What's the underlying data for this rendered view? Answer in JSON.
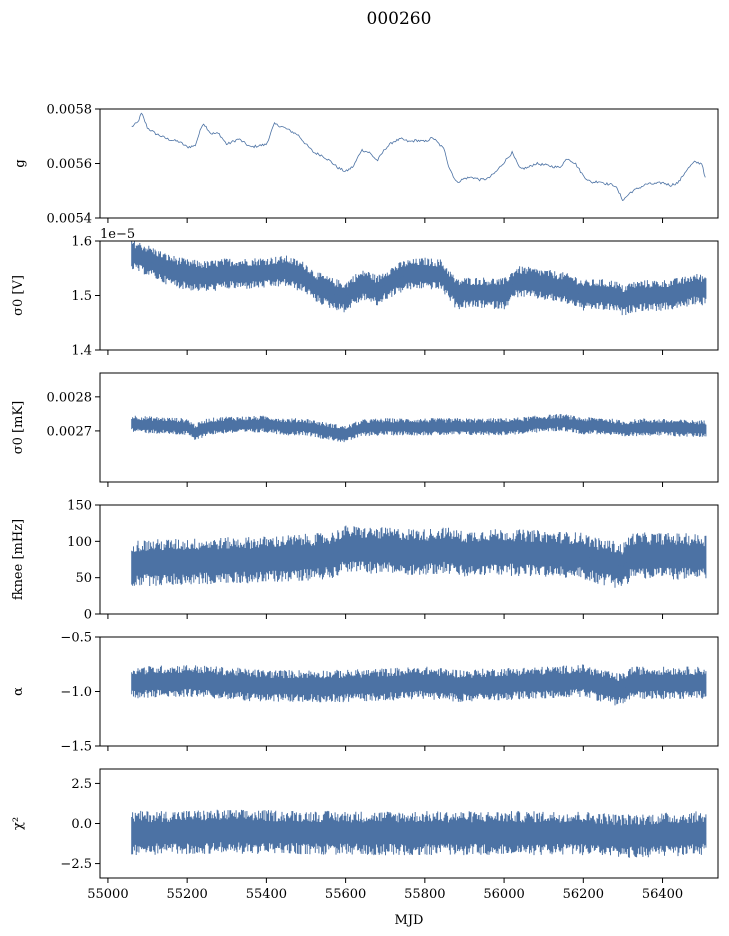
{
  "figure": {
    "title": "000260",
    "xlabel": "MJD"
  },
  "chart_data": [
    {
      "type": "line",
      "panel": "gain",
      "ylabel": "g",
      "ylim": [
        0.0054,
        0.0058
      ],
      "yticks": [
        "0.0054",
        "0.0056",
        "0.0058"
      ],
      "ytick_values": [
        0.0054,
        0.0056,
        0.0058
      ],
      "xlim": [
        54980,
        56540
      ],
      "show_xticklabels": false,
      "color": "#4c72a4",
      "series": [
        {
          "x": [
            55060,
            55075,
            55085,
            55100,
            55120,
            55150,
            55180,
            55200,
            55220,
            55240,
            55260,
            55280,
            55300,
            55330,
            55360,
            55400,
            55420,
            55440,
            55460,
            55480,
            55500,
            55520,
            55540,
            55560,
            55580,
            55600,
            55620,
            55640,
            55660,
            55680,
            55700,
            55720,
            55740,
            55760,
            55780,
            55800,
            55820,
            55840,
            55850,
            55860,
            55880,
            55900,
            55920,
            55940,
            55960,
            55980,
            56000,
            56020,
            56040,
            56060,
            56080,
            56100,
            56120,
            56140,
            56160,
            56180,
            56200,
            56220,
            56240,
            56260,
            56280,
            56300,
            56320,
            56340,
            56360,
            56380,
            56400,
            56420,
            56440,
            56460,
            56480,
            56500,
            56510
          ],
          "values": [
            0.005735,
            0.00575,
            0.005785,
            0.00573,
            0.00571,
            0.00569,
            0.00568,
            0.00566,
            0.005665,
            0.00575,
            0.00571,
            0.00571,
            0.00567,
            0.00569,
            0.00566,
            0.00567,
            0.005745,
            0.005735,
            0.00572,
            0.005705,
            0.00567,
            0.00564,
            0.00563,
            0.00561,
            0.005585,
            0.00557,
            0.00559,
            0.00565,
            0.00564,
            0.00561,
            0.005655,
            0.00568,
            0.00569,
            0.00568,
            0.005685,
            0.00568,
            0.005695,
            0.005665,
            0.00565,
            0.00559,
            0.00553,
            0.005545,
            0.00555,
            0.00554,
            0.005545,
            0.00557,
            0.005605,
            0.00564,
            0.00558,
            0.005585,
            0.0056,
            0.005595,
            0.00559,
            0.005585,
            0.00562,
            0.0056,
            0.005555,
            0.00553,
            0.005535,
            0.005525,
            0.00552,
            0.005465,
            0.005495,
            0.00551,
            0.005525,
            0.005525,
            0.00553,
            0.00552,
            0.00553,
            0.005575,
            0.005605,
            0.0056,
            0.00553
          ]
        }
      ]
    },
    {
      "type": "line",
      "panel": "sigma0_volts",
      "ylabel": "σ0 [V]",
      "offset_text": "1e−5",
      "ylim": [
        1.4,
        1.6
      ],
      "yticks": [
        "1.4",
        "1.5",
        "1.6"
      ],
      "ytick_values": [
        1.4,
        1.5,
        1.6
      ],
      "xlim": [
        54980,
        56540
      ],
      "show_xticklabels": false,
      "color": "#4c72a4",
      "band": 0.025,
      "series": [
        {
          "x": [
            55060,
            55100,
            55150,
            55200,
            55250,
            55300,
            55350,
            55400,
            55450,
            55500,
            55520,
            55560,
            55600,
            55620,
            55650,
            55680,
            55700,
            55750,
            55800,
            55840,
            55860,
            55880,
            55900,
            55950,
            56000,
            56030,
            56050,
            56100,
            56150,
            56180,
            56200,
            56240,
            56260,
            56280,
            56300,
            56320,
            56350,
            56400,
            56450,
            56480,
            56510
          ],
          "values": [
            1.575,
            1.565,
            1.548,
            1.538,
            1.535,
            1.54,
            1.54,
            1.542,
            1.545,
            1.532,
            1.518,
            1.505,
            1.497,
            1.51,
            1.52,
            1.508,
            1.52,
            1.537,
            1.541,
            1.538,
            1.522,
            1.502,
            1.505,
            1.505,
            1.503,
            1.525,
            1.525,
            1.52,
            1.514,
            1.508,
            1.5,
            1.502,
            1.5,
            1.5,
            1.49,
            1.497,
            1.5,
            1.5,
            1.505,
            1.512,
            1.51
          ]
        }
      ]
    },
    {
      "type": "line",
      "panel": "sigma0_mK",
      "ylabel": "σ0 [mK]",
      "ylim": [
        0.00255,
        0.00287
      ],
      "yticks": [
        "0.0027",
        "0.0028"
      ],
      "ytick_values": [
        0.0027,
        0.0028
      ],
      "xlim": [
        54980,
        56540
      ],
      "show_xticklabels": false,
      "color": "#4c72a4",
      "band": 2.2e-05,
      "series": [
        {
          "x": [
            55060,
            55100,
            55150,
            55200,
            55220,
            55250,
            55300,
            55350,
            55400,
            55450,
            55500,
            55550,
            55600,
            55620,
            55650,
            55700,
            55750,
            55800,
            55850,
            55900,
            55950,
            56000,
            56050,
            56100,
            56150,
            56180,
            56200,
            56250,
            56300,
            56350,
            56400,
            56450,
            56510
          ],
          "values": [
            0.002722,
            0.002718,
            0.002715,
            0.002712,
            0.002695,
            0.002712,
            0.002718,
            0.002718,
            0.00272,
            0.002712,
            0.002712,
            0.0027,
            0.00269,
            0.0027,
            0.00271,
            0.002712,
            0.002712,
            0.002712,
            0.002712,
            0.002712,
            0.002712,
            0.002712,
            0.002716,
            0.002722,
            0.002725,
            0.002718,
            0.002715,
            0.002715,
            0.002705,
            0.002712,
            0.00271,
            0.002708,
            0.002706
          ]
        }
      ]
    },
    {
      "type": "line",
      "panel": "fknee",
      "ylabel": "fknee [mHz]",
      "ylim": [
        0,
        150
      ],
      "yticks": [
        "0",
        "50",
        "100",
        "150"
      ],
      "ytick_values": [
        0,
        50,
        100,
        150
      ],
      "xlim": [
        54980,
        56540
      ],
      "show_xticklabels": false,
      "color": "#4c72a4",
      "band": 28,
      "series": [
        {
          "x": [
            55060,
            55200,
            55400,
            55560,
            55600,
            55650,
            55800,
            55850,
            55900,
            55950,
            56000,
            56100,
            56200,
            56240,
            56270,
            56300,
            56320,
            56400,
            56510
          ],
          "values": [
            70,
            72,
            75,
            80,
            90,
            88,
            85,
            88,
            82,
            85,
            85,
            83,
            80,
            72,
            70,
            65,
            80,
            80,
            78
          ]
        }
      ]
    },
    {
      "type": "line",
      "panel": "alpha",
      "ylabel": "α",
      "ylim": [
        -1.5,
        -0.5
      ],
      "yticks": [
        "−1.5",
        "−1.0",
        "−0.5"
      ],
      "ytick_values": [
        -1.5,
        -1.0,
        -0.5
      ],
      "xlim": [
        54980,
        56540
      ],
      "show_xticklabels": false,
      "color": "#4c72a4",
      "band": 0.13,
      "series": [
        {
          "x": [
            55060,
            55200,
            55400,
            55600,
            55800,
            55900,
            56000,
            56100,
            56200,
            56280,
            56300,
            56320,
            56400,
            56510
          ],
          "values": [
            -0.92,
            -0.9,
            -0.95,
            -0.95,
            -0.92,
            -0.95,
            -0.93,
            -0.92,
            -0.9,
            -0.98,
            -0.98,
            -0.92,
            -0.92,
            -0.92
          ]
        }
      ]
    },
    {
      "type": "line",
      "panel": "chisq",
      "ylabel": "χ²",
      "ylim": [
        -3.4,
        3.4
      ],
      "yticks": [
        "−2.5",
        "0.0",
        "2.5"
      ],
      "ytick_values": [
        -2.5,
        0.0,
        2.5
      ],
      "xlim": [
        54980,
        56540
      ],
      "xticks": [
        "55000",
        "55200",
        "55400",
        "55600",
        "55800",
        "56000",
        "56200",
        "56400"
      ],
      "xtick_values": [
        55000,
        55200,
        55400,
        55600,
        55800,
        56000,
        56200,
        56400
      ],
      "show_xticklabels": true,
      "color": "#4c72a4",
      "band": 1.2,
      "series": [
        {
          "x": [
            55060,
            55300,
            55600,
            55900,
            56200,
            56300,
            56510
          ],
          "values": [
            -0.6,
            -0.5,
            -0.6,
            -0.6,
            -0.6,
            -0.8,
            -0.6
          ]
        }
      ]
    }
  ]
}
